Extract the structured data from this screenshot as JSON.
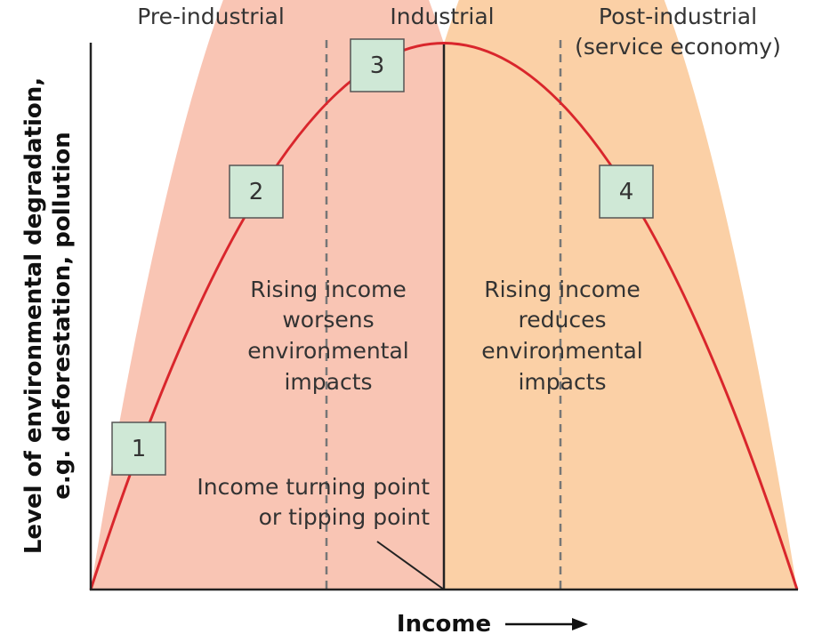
{
  "stages": {
    "pre_industrial": "Pre-industrial",
    "industrial": "Industrial",
    "post_industrial_line1": "Post-industrial",
    "post_industrial_line2": "(service economy)"
  },
  "regions": {
    "rising": [
      "Rising income",
      "worsens",
      "environmental",
      "impacts"
    ],
    "falling": [
      "Rising income",
      "reduces",
      "environmental",
      "impacts"
    ]
  },
  "turning_point": [
    "Income turning point",
    "or tipping point"
  ],
  "axes": {
    "y_title_line1": "Level of environmental degradation,",
    "y_title_line2": "e.g. deforestation, pollution",
    "x_title": "Income"
  },
  "boxes": [
    "1",
    "2",
    "3",
    "4"
  ],
  "colors": {
    "rising_fill": "#f9c5b4",
    "falling_fill": "#fbd0a6",
    "curve": "#d9262c",
    "box_fill": "#cfe8d6"
  }
}
